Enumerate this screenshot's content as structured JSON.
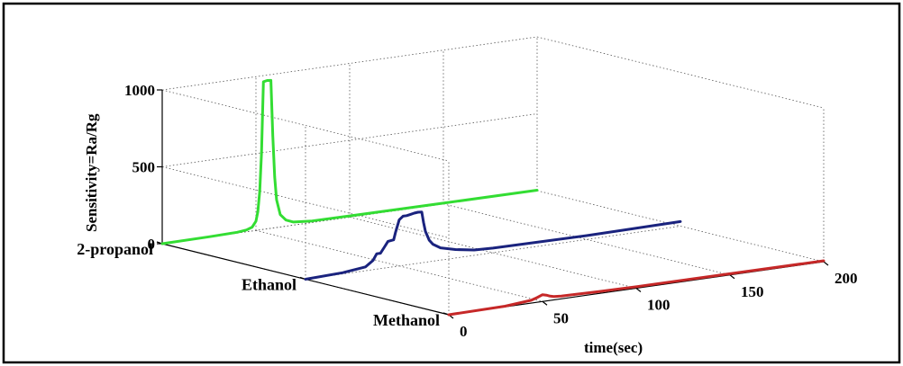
{
  "chart_data": {
    "type": "line",
    "projection": "3d-waterfall",
    "zlabel": "Sensitivity=Ra/Rg",
    "xlabel": "time(sec)",
    "ylabel": "",
    "x_ticks": [
      "0",
      "50",
      "100",
      "150",
      "200"
    ],
    "z_ticks": [
      "0",
      "500",
      "1000"
    ],
    "xlim": [
      0,
      200
    ],
    "zlim": [
      0,
      1000
    ],
    "grid": true,
    "categories": [
      "2-propanol",
      "Ethanol",
      "Methanol"
    ],
    "series": [
      {
        "name": "2-propanol",
        "color": "#33dd33",
        "points": [
          [
            0,
            0
          ],
          [
            25,
            2
          ],
          [
            40,
            5
          ],
          [
            45,
            12
          ],
          [
            48,
            25
          ],
          [
            50,
            60
          ],
          [
            51,
            120
          ],
          [
            52,
            250
          ],
          [
            53,
            500
          ],
          [
            54,
            960
          ],
          [
            56,
            965
          ],
          [
            58,
            962
          ],
          [
            59,
            600
          ],
          [
            60,
            330
          ],
          [
            61,
            180
          ],
          [
            63,
            80
          ],
          [
            66,
            40
          ],
          [
            70,
            20
          ],
          [
            80,
            10
          ],
          [
            100,
            8
          ],
          [
            150,
            5
          ],
          [
            200,
            3
          ]
        ]
      },
      {
        "name": "Ethanol",
        "color": "#1a237e",
        "points": [
          [
            0,
            0
          ],
          [
            20,
            8
          ],
          [
            32,
            25
          ],
          [
            36,
            60
          ],
          [
            38,
            100
          ],
          [
            40,
            100
          ],
          [
            42,
            135
          ],
          [
            44,
            170
          ],
          [
            47,
            175
          ],
          [
            48,
            220
          ],
          [
            50,
            300
          ],
          [
            52,
            320
          ],
          [
            54,
            320
          ],
          [
            56,
            325
          ],
          [
            58,
            330
          ],
          [
            60,
            332
          ],
          [
            62,
            330
          ],
          [
            63,
            260
          ],
          [
            64,
            200
          ],
          [
            66,
            140
          ],
          [
            68,
            110
          ],
          [
            72,
            80
          ],
          [
            80,
            55
          ],
          [
            90,
            35
          ],
          [
            100,
            30
          ],
          [
            150,
            25
          ],
          [
            200,
            30
          ]
        ]
      },
      {
        "name": "Methanol",
        "color": "#c62828",
        "points": [
          [
            0,
            0
          ],
          [
            30,
            4
          ],
          [
            44,
            18
          ],
          [
            47,
            30
          ],
          [
            50,
            44
          ],
          [
            52,
            38
          ],
          [
            54,
            28
          ],
          [
            56,
            22
          ],
          [
            60,
            18
          ],
          [
            80,
            12
          ],
          [
            100,
            10
          ],
          [
            150,
            8
          ],
          [
            200,
            6
          ]
        ]
      }
    ]
  }
}
